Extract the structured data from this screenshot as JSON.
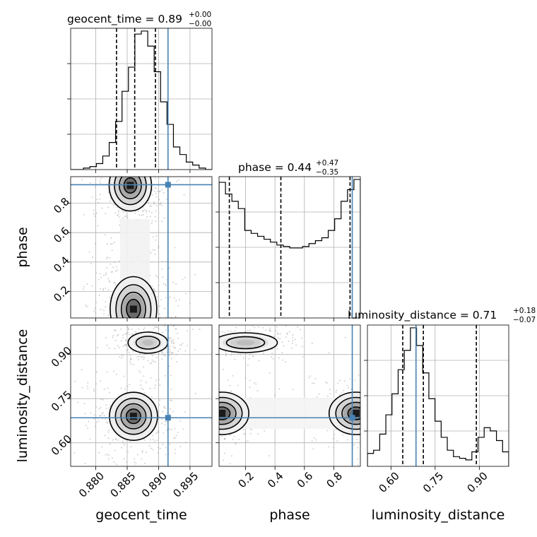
{
  "chart_data": {
    "type": "corner",
    "parameters": [
      "geocent_time",
      "phase",
      "luminosity_distance"
    ],
    "titles": [
      {
        "name": "geocent_time",
        "median": "0.89",
        "plus": "+0.00",
        "minus": "−0.00"
      },
      {
        "name": "phase",
        "median": "0.44",
        "plus": "+0.47",
        "minus": "−0.35"
      },
      {
        "name": "luminosity_distance",
        "median": "0.71",
        "plus": "+0.18",
        "minus": "−0.07"
      }
    ],
    "ranges": {
      "geocent_time": [
        0.876,
        0.8985
      ],
      "phase": [
        0.02,
        0.98
      ],
      "luminosity_distance": [
        0.52,
        1.0
      ]
    },
    "ticks": {
      "geocent_time": [
        0.88,
        0.885,
        0.89,
        0.895
      ],
      "phase_x": [
        0.2,
        0.4,
        0.6,
        0.8
      ],
      "phase_y": [
        0.2,
        0.4,
        0.6,
        0.8
      ],
      "luminosity_distance": [
        0.6,
        0.75,
        0.9
      ]
    },
    "tick_labels": {
      "geocent_time": [
        "0.880",
        "0.885",
        "0.890",
        "0.895"
      ],
      "phase_x": [
        "0.2",
        "0.4",
        "0.6",
        "0.8"
      ],
      "phase_y": [
        "0.2",
        "0.4",
        "0.6",
        "0.8"
      ],
      "luminosity_distance_x": [
        "0.60",
        "0.75",
        "0.90"
      ],
      "luminosity_distance_y": [
        "0.60",
        "0.75",
        "0.90"
      ]
    },
    "truth": {
      "geocent_time": 0.8915,
      "phase": 0.925,
      "luminosity_distance": 0.685
    },
    "quantiles": {
      "geocent_time": [
        0.8833,
        0.8862,
        0.8895
      ],
      "phase": [
        0.09,
        0.44,
        0.91
      ],
      "luminosity_distance": [
        0.64,
        0.71,
        0.89
      ]
    },
    "histograms": {
      "geocent_time": {
        "edges_range": [
          0.876,
          0.8985
        ],
        "counts": [
          0,
          0,
          1,
          2,
          4,
          9,
          18,
          32,
          52,
          68,
          90,
          92,
          82,
          65,
          45,
          30,
          15,
          10,
          5,
          3,
          1,
          0
        ]
      },
      "phase": {
        "edges_range": [
          0.02,
          0.98
        ],
        "counts": [
          93,
          85,
          80,
          75,
          60,
          58,
          56,
          54,
          52,
          50,
          49,
          48,
          48,
          49,
          51,
          53,
          55,
          60,
          68,
          80,
          88,
          95
        ]
      },
      "luminosity_distance": {
        "edges_range": [
          0.52,
          1.0
        ],
        "counts": [
          8,
          10,
          20,
          32,
          45,
          60,
          72,
          86,
          75,
          58,
          42,
          28,
          18,
          10,
          6,
          5,
          4,
          9,
          18,
          24,
          22,
          16,
          9
        ]
      }
    },
    "modes": [
      {
        "x": "geocent_time",
        "y": "phase",
        "centers": [
          [
            0.8855,
            0.92
          ],
          [
            0.886,
            0.08
          ]
        ]
      },
      {
        "x": "geocent_time",
        "y": "luminosity_distance",
        "centers": [
          [
            0.886,
            0.69
          ],
          [
            0.8883,
            0.94
          ]
        ]
      },
      {
        "x": "phase",
        "y": "luminosity_distance",
        "centers": [
          [
            0.04,
            0.7
          ],
          [
            0.95,
            0.7
          ],
          [
            0.2,
            0.94
          ]
        ]
      }
    ],
    "xlabels": [
      "geocent_time",
      "phase",
      "luminosity_distance"
    ],
    "ylabels": [
      "phase",
      "luminosity_distance"
    ],
    "grid": true,
    "truth_color": "#4682b4",
    "hist_color": "#000000",
    "quantile_style": "dashed"
  }
}
